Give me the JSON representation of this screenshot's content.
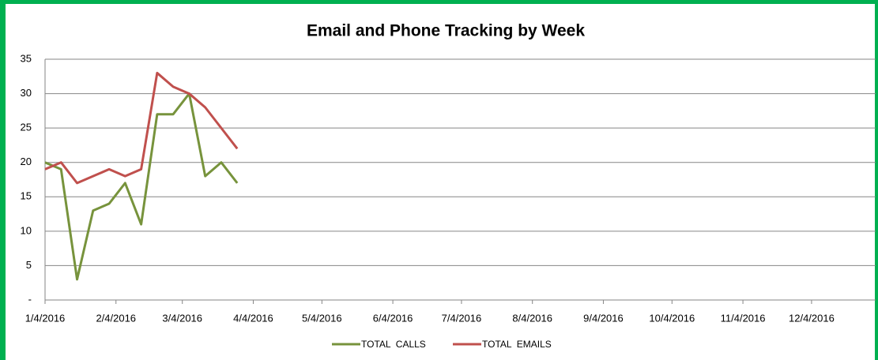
{
  "chart_data": {
    "type": "line",
    "title": "Email and Phone Tracking by Week",
    "x": [
      "2016-01-04",
      "2016-01-11",
      "2016-01-18",
      "2016-01-25",
      "2016-02-01",
      "2016-02-08",
      "2016-02-15",
      "2016-02-22",
      "2016-02-29",
      "2016-03-07",
      "2016-03-14",
      "2016-03-21",
      "2016-03-28"
    ],
    "series": [
      {
        "name": "TOTAL  CALLS",
        "color": "#77933c",
        "values": [
          20,
          19,
          3,
          13,
          14,
          17,
          11,
          27,
          27,
          30,
          18,
          20,
          17
        ]
      },
      {
        "name": "TOTAL  EMAILS",
        "color": "#c0504d",
        "values": [
          19,
          20,
          17,
          18,
          19,
          18,
          19,
          33,
          31,
          30,
          28,
          25,
          22
        ]
      }
    ],
    "ylim": [
      0,
      35
    ],
    "yticks": [
      {
        "value": 0,
        "label": "-"
      },
      5,
      10,
      15,
      20,
      25,
      30,
      35
    ],
    "xlim": [
      "2016-01-04",
      "2017-01-01"
    ],
    "xticks": [
      {
        "value": "2016-01-04",
        "label": "1/4/2016"
      },
      {
        "value": "2016-02-04",
        "label": "2/4/2016"
      },
      {
        "value": "2016-03-04",
        "label": "3/4/2016"
      },
      {
        "value": "2016-04-04",
        "label": "4/4/2016"
      },
      {
        "value": "2016-05-04",
        "label": "5/4/2016"
      },
      {
        "value": "2016-06-04",
        "label": "6/4/2016"
      },
      {
        "value": "2016-07-04",
        "label": "7/4/2016"
      },
      {
        "value": "2016-08-04",
        "label": "8/4/2016"
      },
      {
        "value": "2016-09-04",
        "label": "9/4/2016"
      },
      {
        "value": "2016-10-04",
        "label": "10/4/2016"
      },
      {
        "value": "2016-11-04",
        "label": "11/4/2016"
      },
      {
        "value": "2016-12-04",
        "label": "12/4/2016"
      }
    ],
    "grid": true,
    "legend": "bottom"
  }
}
